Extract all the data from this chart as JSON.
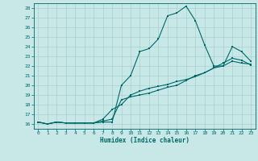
{
  "xlabel": "Humidex (Indice chaleur)",
  "bg_color": "#c8e8e8",
  "grid_color": "#a8d0d0",
  "line_color": "#006868",
  "xlim": [
    -0.5,
    23.5
  ],
  "ylim": [
    15.5,
    28.5
  ],
  "xticks": [
    0,
    1,
    2,
    3,
    4,
    5,
    6,
    7,
    8,
    9,
    10,
    11,
    12,
    13,
    14,
    15,
    16,
    17,
    18,
    19,
    20,
    21,
    22,
    23
  ],
  "yticks": [
    16,
    17,
    18,
    19,
    20,
    21,
    22,
    23,
    24,
    25,
    26,
    27,
    28
  ],
  "line1_x": [
    0,
    1,
    2,
    3,
    4,
    5,
    6,
    7,
    8,
    9,
    10,
    11,
    12,
    13,
    14,
    15,
    16,
    17,
    18,
    19,
    20,
    21,
    22,
    23
  ],
  "line1_y": [
    16.2,
    16.0,
    16.2,
    16.1,
    16.1,
    16.1,
    16.1,
    16.2,
    16.2,
    20.0,
    21.0,
    23.5,
    23.8,
    24.8,
    27.2,
    27.5,
    28.2,
    26.7,
    24.2,
    22.0,
    22.0,
    24.0,
    23.5,
    22.5
  ],
  "line2_x": [
    0,
    1,
    2,
    3,
    4,
    5,
    6,
    7,
    8,
    9,
    10,
    11,
    12,
    13,
    14,
    15,
    16,
    17,
    18,
    19,
    20,
    21,
    22,
    23
  ],
  "line2_y": [
    16.2,
    16.0,
    16.2,
    16.1,
    16.1,
    16.1,
    16.1,
    16.3,
    16.5,
    18.5,
    18.8,
    19.0,
    19.2,
    19.5,
    19.8,
    20.0,
    20.5,
    21.0,
    21.3,
    21.8,
    22.0,
    22.5,
    22.3,
    22.2
  ],
  "line3_x": [
    0,
    1,
    2,
    3,
    4,
    5,
    6,
    7,
    8,
    9,
    10,
    11,
    12,
    13,
    14,
    15,
    16,
    17,
    18,
    19,
    20,
    21,
    22,
    23
  ],
  "line3_y": [
    16.2,
    16.0,
    16.2,
    16.1,
    16.1,
    16.1,
    16.1,
    16.5,
    17.5,
    18.0,
    19.0,
    19.4,
    19.7,
    19.9,
    20.1,
    20.4,
    20.6,
    20.9,
    21.3,
    21.8,
    22.3,
    22.8,
    22.6,
    22.1
  ]
}
